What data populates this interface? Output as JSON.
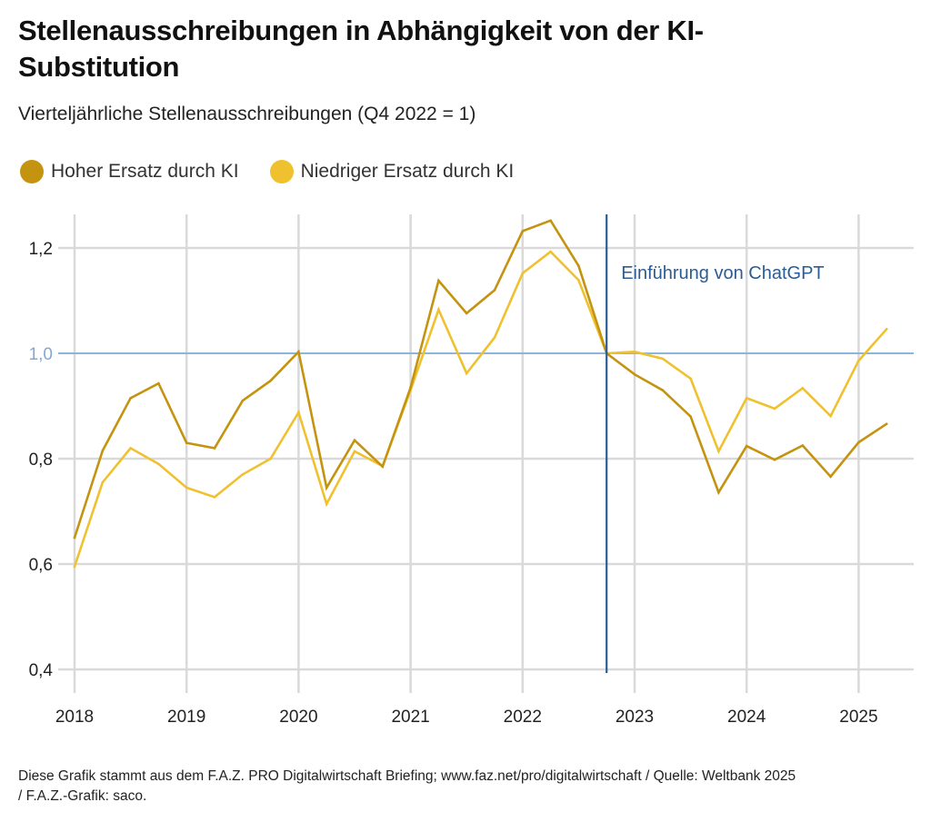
{
  "chart_data": {
    "type": "line",
    "title": "Stellenausschreibungen in Abhängigkeit von der KI-Substitution",
    "subtitle": "Vierteljährliche Stellenausschreibungen (Q4 2022 = 1)",
    "xlabel": "",
    "ylabel": "",
    "ylim": [
      0.4,
      1.26
    ],
    "yticks": [
      0.4,
      0.6,
      0.8,
      1.0,
      1.2
    ],
    "ytick_labels": [
      "0,4",
      "0,6",
      "0,8",
      "1,0",
      "1,2"
    ],
    "reference_line": {
      "value": 1.0,
      "color": "#8eb4d9"
    },
    "xlim": [
      2018.0,
      2025.45
    ],
    "xticks": [
      2018,
      2019,
      2020,
      2021,
      2022,
      2023,
      2024,
      2025
    ],
    "xtick_labels": [
      "2018",
      "2019",
      "2020",
      "2021",
      "2022",
      "2023",
      "2024",
      "2025"
    ],
    "x": [
      2018.0,
      2018.25,
      2018.5,
      2018.75,
      2019.0,
      2019.25,
      2019.5,
      2019.75,
      2020.0,
      2020.25,
      2020.5,
      2020.75,
      2021.0,
      2021.25,
      2021.5,
      2021.75,
      2022.0,
      2022.25,
      2022.5,
      2022.75,
      2023.0,
      2023.25,
      2023.5,
      2023.75,
      2024.0,
      2024.25,
      2024.5,
      2024.75,
      2025.0,
      2025.25
    ],
    "series": [
      {
        "name": "Hoher Ersatz durch KI",
        "color": "#c4930f",
        "values": [
          0.65,
          0.815,
          0.915,
          0.943,
          0.83,
          0.82,
          0.91,
          0.948,
          1.003,
          0.745,
          0.835,
          0.785,
          0.935,
          1.138,
          1.076,
          1.12,
          1.232,
          1.252,
          1.166,
          1.0,
          0.96,
          0.93,
          0.88,
          0.736,
          0.824,
          0.798,
          0.825,
          0.766,
          0.831,
          0.866
        ]
      },
      {
        "name": "Niedriger Ersatz durch KI",
        "color": "#f0c12f",
        "values": [
          0.595,
          0.755,
          0.82,
          0.79,
          0.745,
          0.727,
          0.77,
          0.8,
          0.888,
          0.714,
          0.814,
          0.786,
          0.93,
          1.083,
          0.962,
          1.03,
          1.152,
          1.193,
          1.139,
          1.0,
          1.003,
          0.99,
          0.952,
          0.814,
          0.915,
          0.895,
          0.934,
          0.881,
          0.986,
          1.046
        ]
      }
    ],
    "annotations": [
      {
        "type": "vline",
        "x": 2022.75,
        "label": "Einführung von ChatGPT",
        "color": "#2b5c93"
      }
    ],
    "grid": true,
    "legend": "top-left"
  },
  "footer": {
    "line1": "Diese Grafik stammt aus dem F.A.Z. PRO Digitalwirtschaft Briefing; www.faz.net/pro/digitalwirtschaft / Quelle: Weltbank 2025",
    "line2": "/ F.A.Z.-Grafik: saco."
  }
}
